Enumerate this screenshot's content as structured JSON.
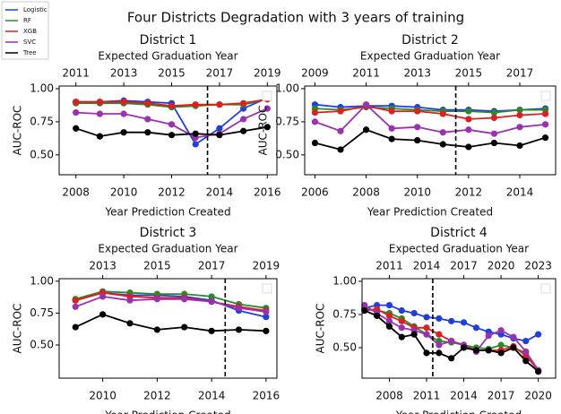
{
  "title": "Four Districts Degradation with 3 years of training",
  "chart_data": [
    {
      "type": "line",
      "title": "District 1",
      "x2label": "Expected Graduation Year",
      "xlabel": "Year Prediction Created",
      "ylabel": "AUC-ROC",
      "x": [
        2008,
        2009,
        2010,
        2011,
        2012,
        2013,
        2014,
        2015,
        2016
      ],
      "series": [
        {
          "name": "Logistic",
          "color": "#1f3fdc",
          "values": [
            0.9,
            0.9,
            0.91,
            0.9,
            0.89,
            0.58,
            0.7,
            0.85,
            0.93
          ]
        },
        {
          "name": "RF",
          "color": "#2a8a2a",
          "values": [
            0.89,
            0.89,
            0.89,
            0.88,
            0.86,
            0.87,
            0.88,
            0.88,
            0.92
          ]
        },
        {
          "name": "XGB",
          "color": "#e01e1e",
          "values": [
            0.9,
            0.9,
            0.9,
            0.89,
            0.87,
            0.88,
            0.88,
            0.89,
            0.92
          ]
        },
        {
          "name": "SVC",
          "color": "#9b30b0",
          "values": [
            0.82,
            0.81,
            0.81,
            0.77,
            0.73,
            0.63,
            0.66,
            0.77,
            0.85
          ]
        },
        {
          "name": "Tree",
          "color": "#000000",
          "values": [
            0.7,
            0.64,
            0.67,
            0.67,
            0.65,
            0.66,
            0.65,
            0.68,
            0.71
          ]
        }
      ],
      "xlim": [
        2007.3,
        2016.4
      ],
      "xticks": [
        2008,
        2010,
        2012,
        2014,
        2016
      ],
      "x2lim": [
        2010.3,
        2019.4
      ],
      "x2ticks": [
        2011,
        2013,
        2015,
        2017,
        2019
      ],
      "ylim": [
        0.35,
        1.02
      ],
      "yticks": [
        {
          "value": 0.5,
          "label": "0.50"
        },
        {
          "value": 0.75,
          "label": "0.75"
        },
        {
          "value": 1.0,
          "label": "1.00"
        }
      ],
      "vline": 2013.5
    },
    {
      "type": "line",
      "title": "District 2",
      "x2label": "Expected Graduation Year",
      "xlabel": "Year Prediction Created",
      "ylabel": "AUC-ROC",
      "x": [
        2006,
        2007,
        2008,
        2009,
        2010,
        2011,
        2012,
        2013,
        2014,
        2015
      ],
      "series": [
        {
          "name": "Logistic",
          "color": "#1f3fdc",
          "values": [
            0.88,
            0.86,
            0.87,
            0.87,
            0.86,
            0.84,
            0.84,
            0.83,
            0.84,
            0.85
          ]
        },
        {
          "name": "RF",
          "color": "#2a8a2a",
          "values": [
            0.85,
            0.84,
            0.86,
            0.85,
            0.84,
            0.83,
            0.83,
            0.82,
            0.84,
            0.84
          ]
        },
        {
          "name": "XGB",
          "color": "#e01e1e",
          "values": [
            0.82,
            0.83,
            0.87,
            0.83,
            0.83,
            0.81,
            0.77,
            0.78,
            0.8,
            0.81
          ]
        },
        {
          "name": "SVC",
          "color": "#9b30b0",
          "values": [
            0.75,
            0.68,
            0.88,
            0.7,
            0.71,
            0.67,
            0.69,
            0.66,
            0.71,
            0.73
          ]
        },
        {
          "name": "Tree",
          "color": "#000000",
          "values": [
            0.59,
            0.54,
            0.69,
            0.62,
            0.61,
            0.58,
            0.56,
            0.59,
            0.57,
            0.63
          ]
        }
      ],
      "xlim": [
        2005.6,
        2015.4
      ],
      "xticks": [
        2006,
        2008,
        2010,
        2012,
        2014
      ],
      "x2lim": [
        2008.6,
        2018.4
      ],
      "x2ticks": [
        2009,
        2011,
        2013,
        2015,
        2017
      ],
      "ylim": [
        0.35,
        1.02
      ],
      "yticks": [
        {
          "value": 0.5,
          "label": "0.50"
        },
        {
          "value": 0.75,
          "label": "0.75"
        },
        {
          "value": 1.0,
          "label": "1.00"
        }
      ],
      "vline": 2011.5
    },
    {
      "type": "line",
      "title": "District 3",
      "x2label": "Expected Graduation Year",
      "xlabel": "Year Prediction Created",
      "ylabel": "AUC-ROC",
      "x": [
        2009,
        2010,
        2011,
        2012,
        2013,
        2014,
        2015,
        2016
      ],
      "series": [
        {
          "name": "Logistic",
          "color": "#1f3fdc",
          "values": [
            0.85,
            0.91,
            0.89,
            0.89,
            0.88,
            0.85,
            0.77,
            0.72
          ]
        },
        {
          "name": "RF",
          "color": "#2a8a2a",
          "values": [
            0.86,
            0.92,
            0.91,
            0.9,
            0.9,
            0.88,
            0.82,
            0.79
          ]
        },
        {
          "name": "XGB",
          "color": "#e01e1e",
          "values": [
            0.85,
            0.91,
            0.88,
            0.87,
            0.87,
            0.84,
            0.8,
            0.77
          ]
        },
        {
          "name": "SVC",
          "color": "#9b30b0",
          "values": [
            0.8,
            0.88,
            0.85,
            0.86,
            0.86,
            0.84,
            0.79,
            0.76
          ]
        },
        {
          "name": "Tree",
          "color": "#000000",
          "values": [
            0.64,
            0.74,
            0.67,
            0.62,
            0.64,
            0.61,
            0.62,
            0.61
          ]
        }
      ],
      "xlim": [
        2008.4,
        2016.4
      ],
      "xticks": [
        2010,
        2012,
        2014,
        2016
      ],
      "x2lim": [
        2011.4,
        2019.4
      ],
      "x2ticks": [
        2013,
        2015,
        2017,
        2019
      ],
      "ylim": [
        0.24,
        1.02
      ],
      "yticks": [
        {
          "value": 0.5,
          "label": "0.50"
        },
        {
          "value": 0.75,
          "label": "0.75"
        },
        {
          "value": 1.0,
          "label": "1.00"
        }
      ],
      "vline": 2014.5
    },
    {
      "type": "line",
      "title": "District 4",
      "x2label": "Expected Graduation Year",
      "xlabel": "Year Prediction Created",
      "ylabel": "AUC-ROC",
      "x": [
        2006,
        2007,
        2008,
        2009,
        2010,
        2011,
        2012,
        2013,
        2014,
        2015,
        2016,
        2017,
        2018,
        2019,
        2020
      ],
      "series": [
        {
          "name": "Logistic",
          "color": "#1f3fdc",
          "values": [
            0.8,
            0.82,
            0.82,
            0.78,
            0.76,
            0.73,
            0.72,
            0.7,
            0.69,
            0.65,
            0.62,
            0.6,
            0.57,
            0.55,
            0.6
          ]
        },
        {
          "name": "RF",
          "color": "#2a8a2a",
          "values": [
            0.79,
            0.78,
            0.76,
            0.72,
            0.66,
            0.6,
            0.55,
            0.54,
            0.52,
            0.5,
            0.49,
            0.52,
            0.5,
            0.46,
            0.32
          ]
        },
        {
          "name": "XGB",
          "color": "#e01e1e",
          "values": [
            0.78,
            0.79,
            0.74,
            0.7,
            0.65,
            0.65,
            0.6,
            0.55,
            0.52,
            0.48,
            0.48,
            0.48,
            0.51,
            0.44,
            0.33
          ]
        },
        {
          "name": "SVC",
          "color": "#9b30b0",
          "values": [
            0.82,
            0.76,
            0.7,
            0.65,
            0.63,
            0.6,
            0.52,
            0.55,
            0.52,
            0.47,
            0.59,
            0.63,
            0.58,
            0.47,
            0.33
          ]
        },
        {
          "name": "Tree",
          "color": "#000000",
          "values": [
            0.78,
            0.74,
            0.66,
            0.58,
            0.6,
            0.46,
            0.46,
            0.42,
            0.5,
            0.48,
            0.48,
            0.46,
            0.5,
            0.4,
            0.32
          ]
        }
      ],
      "xlim": [
        2005.8,
        2021.4
      ],
      "xticks": [
        2008,
        2011,
        2014,
        2017,
        2020
      ],
      "x2lim": [
        2008.8,
        2024.4
      ],
      "x2ticks": [
        2011,
        2014,
        2017,
        2020,
        2023
      ],
      "ylim": [
        0.27,
        1.02
      ],
      "yticks": [
        {
          "value": 0.5,
          "label": "0.50"
        },
        {
          "value": 0.75,
          "label": "0.75"
        },
        {
          "value": 1.0,
          "label": "1.00"
        }
      ],
      "vline": 2011.5
    }
  ]
}
